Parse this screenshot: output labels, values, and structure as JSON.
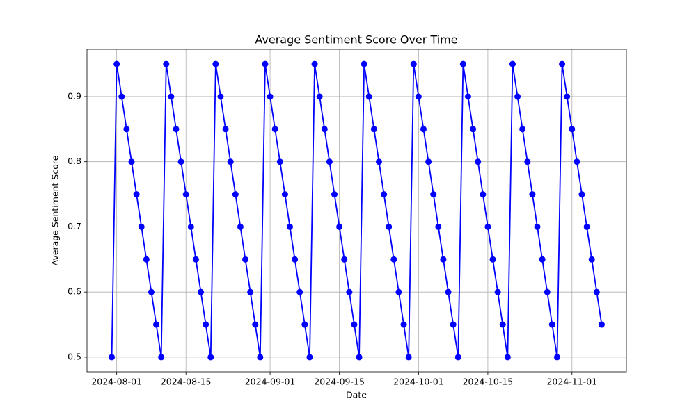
{
  "chart_data": {
    "type": "line",
    "title": "Average Sentiment Score Over Time",
    "x_label": "Date",
    "y_label": "Average Sentiment Score",
    "x": [
      "2024-07-31",
      "2024-08-01",
      "2024-08-02",
      "2024-08-03",
      "2024-08-04",
      "2024-08-05",
      "2024-08-06",
      "2024-08-07",
      "2024-08-08",
      "2024-08-09",
      "2024-08-10",
      "2024-08-11",
      "2024-08-12",
      "2024-08-13",
      "2024-08-14",
      "2024-08-15",
      "2024-08-16",
      "2024-08-17",
      "2024-08-18",
      "2024-08-19",
      "2024-08-20",
      "2024-08-21",
      "2024-08-22",
      "2024-08-23",
      "2024-08-24",
      "2024-08-25",
      "2024-08-26",
      "2024-08-27",
      "2024-08-28",
      "2024-08-29",
      "2024-08-30",
      "2024-08-31",
      "2024-09-01",
      "2024-09-02",
      "2024-09-03",
      "2024-09-04",
      "2024-09-05",
      "2024-09-06",
      "2024-09-07",
      "2024-09-08",
      "2024-09-09",
      "2024-09-10",
      "2024-09-11",
      "2024-09-12",
      "2024-09-13",
      "2024-09-14",
      "2024-09-15",
      "2024-09-16",
      "2024-09-17",
      "2024-09-18",
      "2024-09-19",
      "2024-09-20",
      "2024-09-21",
      "2024-09-22",
      "2024-09-23",
      "2024-09-24",
      "2024-09-25",
      "2024-09-26",
      "2024-09-27",
      "2024-09-28",
      "2024-09-29",
      "2024-09-30",
      "2024-10-01",
      "2024-10-02",
      "2024-10-03",
      "2024-10-04",
      "2024-10-05",
      "2024-10-06",
      "2024-10-07",
      "2024-10-08",
      "2024-10-09",
      "2024-10-10",
      "2024-10-11",
      "2024-10-12",
      "2024-10-13",
      "2024-10-14",
      "2024-10-15",
      "2024-10-16",
      "2024-10-17",
      "2024-10-18",
      "2024-10-19",
      "2024-10-20",
      "2024-10-21",
      "2024-10-22",
      "2024-10-23",
      "2024-10-24",
      "2024-10-25",
      "2024-10-26",
      "2024-10-27",
      "2024-10-28",
      "2024-10-29",
      "2024-10-30",
      "2024-10-31",
      "2024-11-01",
      "2024-11-02",
      "2024-11-03",
      "2024-11-04",
      "2024-11-05",
      "2024-11-06",
      "2024-11-07"
    ],
    "series": [
      {
        "color": "#0000ff",
        "values": [
          0.5,
          0.95,
          0.9,
          0.85,
          0.8,
          0.75,
          0.7,
          0.65,
          0.6,
          0.55,
          0.5,
          0.95,
          0.9,
          0.85,
          0.8,
          0.75,
          0.7,
          0.65,
          0.6,
          0.55,
          0.5,
          0.95,
          0.9,
          0.85,
          0.8,
          0.75,
          0.7,
          0.65,
          0.6,
          0.55,
          0.5,
          0.95,
          0.9,
          0.85,
          0.8,
          0.75,
          0.7,
          0.65,
          0.6,
          0.55,
          0.5,
          0.95,
          0.9,
          0.85,
          0.8,
          0.75,
          0.7,
          0.65,
          0.6,
          0.55,
          0.5,
          0.95,
          0.9,
          0.85,
          0.8,
          0.75,
          0.7,
          0.65,
          0.6,
          0.55,
          0.5,
          0.95,
          0.9,
          0.85,
          0.8,
          0.75,
          0.7,
          0.65,
          0.6,
          0.55,
          0.5,
          0.95,
          0.9,
          0.85,
          0.8,
          0.75,
          0.7,
          0.65,
          0.6,
          0.55,
          0.5,
          0.95,
          0.9,
          0.85,
          0.8,
          0.75,
          0.7,
          0.65,
          0.6,
          0.55,
          0.5,
          0.95,
          0.9,
          0.85,
          0.8,
          0.75,
          0.7,
          0.65,
          0.6,
          0.55
        ]
      }
    ],
    "xlim": [
      "2024-07-26",
      "2024-11-12"
    ],
    "xticks": [
      "2024-08-01",
      "2024-08-15",
      "2024-09-01",
      "2024-09-15",
      "2024-10-01",
      "2024-10-15",
      "2024-11-01"
    ],
    "ylim": [
      0.4775,
      0.9725
    ],
    "yticks": [
      0.5,
      0.6,
      0.7,
      0.8,
      0.9
    ],
    "grid": true
  }
}
